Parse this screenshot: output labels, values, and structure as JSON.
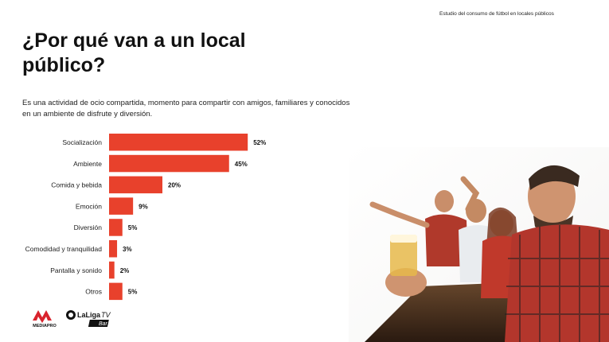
{
  "header": {
    "note": "Estudio del consumo de fútbol en locales públicos",
    "title": "¿Por qué van a un local público?",
    "subtitle": "Es una actividad de ocio compartida, momento para compartir con amigos, familiares y conocidos en un ambiente de disfrute y diversión."
  },
  "chart_data": {
    "type": "bar",
    "orientation": "horizontal",
    "categories": [
      "Socialización",
      "Ambiente",
      "Comida y bebida",
      "Emoción",
      "Diversión",
      "Comodidad y tranquilidad",
      "Pantalla y sonido",
      "Otros"
    ],
    "values": [
      52,
      45,
      20,
      9,
      5,
      3,
      2,
      5
    ],
    "value_labels": [
      "52%",
      "45%",
      "20%",
      "9%",
      "5%",
      "3%",
      "2%",
      "5%"
    ],
    "xlim": [
      0,
      100
    ],
    "grid": false,
    "bar_color": "#e8412c"
  },
  "logos": {
    "mediapro": "MEDIAPRO",
    "laliga": "LaLiga",
    "laliga_tv": "TV",
    "laliga_bar": "Bar"
  },
  "colors": {
    "accent": "#e8412c",
    "mediapro_red": "#d9232d"
  }
}
